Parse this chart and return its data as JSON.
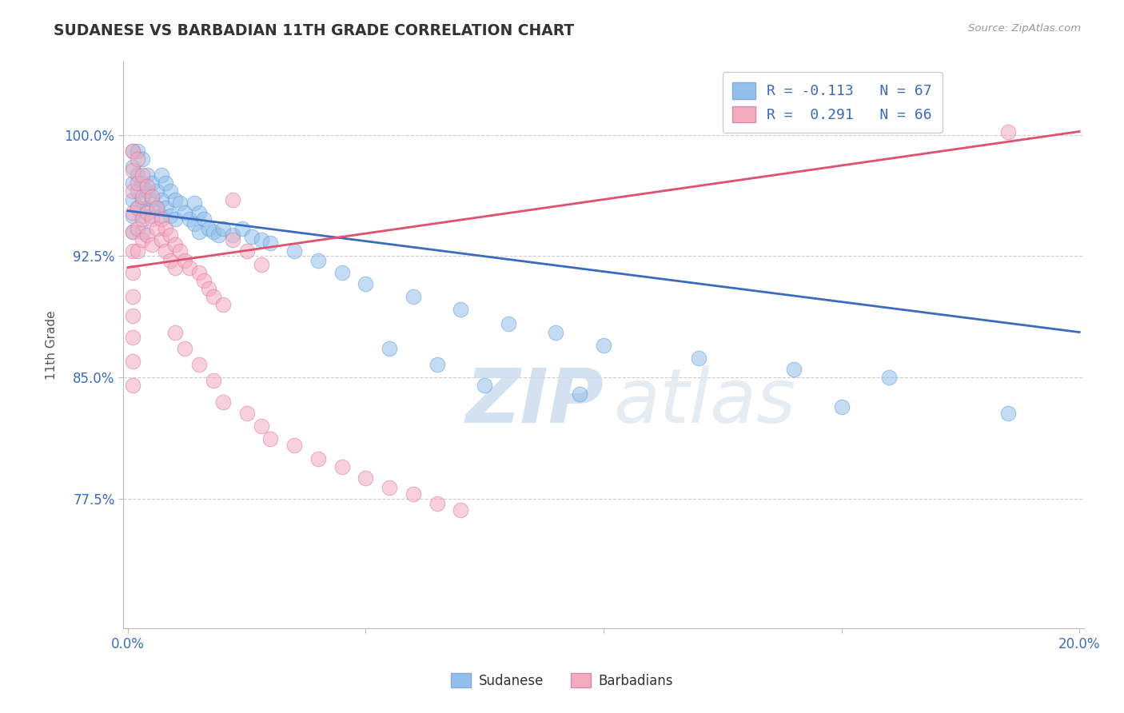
{
  "title": "SUDANESE VS BARBADIAN 11TH GRADE CORRELATION CHART",
  "source_text": "Source: ZipAtlas.com",
  "ylabel": "11th Grade",
  "xlim": [
    -0.001,
    0.201
  ],
  "ylim": [
    0.695,
    1.045
  ],
  "xticks": [
    0.0,
    0.05,
    0.1,
    0.15,
    0.2
  ],
  "xticklabels": [
    "0.0%",
    "",
    "",
    "",
    "20.0%"
  ],
  "yticks": [
    0.775,
    0.85,
    0.925,
    1.0
  ],
  "yticklabels": [
    "77.5%",
    "85.0%",
    "92.5%",
    "100.0%"
  ],
  "sudanese_color": "#92c0ea",
  "barbadian_color": "#f4abbe",
  "trend_blue_color": "#3a6bbf",
  "trend_pink_color": "#e05070",
  "watermark_zip": "ZIP",
  "watermark_atlas": "atlas",
  "legend_line1": "R = -0.113   N = 67",
  "legend_line2": "R =  0.291   N = 66",
  "blue_trend": [
    0.0,
    0.953,
    0.2,
    0.878
  ],
  "pink_trend": [
    0.0,
    0.918,
    0.2,
    1.002
  ],
  "sudanese_points": [
    [
      0.001,
      0.99
    ],
    [
      0.001,
      0.98
    ],
    [
      0.001,
      0.97
    ],
    [
      0.001,
      0.96
    ],
    [
      0.001,
      0.95
    ],
    [
      0.001,
      0.94
    ],
    [
      0.002,
      0.99
    ],
    [
      0.002,
      0.975
    ],
    [
      0.002,
      0.965
    ],
    [
      0.002,
      0.955
    ],
    [
      0.003,
      0.985
    ],
    [
      0.003,
      0.97
    ],
    [
      0.003,
      0.96
    ],
    [
      0.003,
      0.95
    ],
    [
      0.003,
      0.94
    ],
    [
      0.004,
      0.975
    ],
    [
      0.004,
      0.965
    ],
    [
      0.004,
      0.955
    ],
    [
      0.005,
      0.97
    ],
    [
      0.005,
      0.96
    ],
    [
      0.005,
      0.95
    ],
    [
      0.006,
      0.965
    ],
    [
      0.006,
      0.955
    ],
    [
      0.007,
      0.975
    ],
    [
      0.007,
      0.96
    ],
    [
      0.007,
      0.95
    ],
    [
      0.008,
      0.97
    ],
    [
      0.008,
      0.955
    ],
    [
      0.009,
      0.965
    ],
    [
      0.009,
      0.95
    ],
    [
      0.01,
      0.96
    ],
    [
      0.01,
      0.948
    ],
    [
      0.011,
      0.958
    ],
    [
      0.012,
      0.952
    ],
    [
      0.013,
      0.948
    ],
    [
      0.014,
      0.958
    ],
    [
      0.014,
      0.945
    ],
    [
      0.015,
      0.952
    ],
    [
      0.015,
      0.94
    ],
    [
      0.016,
      0.948
    ],
    [
      0.017,
      0.942
    ],
    [
      0.018,
      0.94
    ],
    [
      0.019,
      0.938
    ],
    [
      0.02,
      0.942
    ],
    [
      0.022,
      0.938
    ],
    [
      0.024,
      0.942
    ],
    [
      0.026,
      0.937
    ],
    [
      0.028,
      0.935
    ],
    [
      0.03,
      0.933
    ],
    [
      0.035,
      0.928
    ],
    [
      0.04,
      0.922
    ],
    [
      0.045,
      0.915
    ],
    [
      0.05,
      0.908
    ],
    [
      0.06,
      0.9
    ],
    [
      0.07,
      0.892
    ],
    [
      0.08,
      0.883
    ],
    [
      0.09,
      0.878
    ],
    [
      0.1,
      0.87
    ],
    [
      0.12,
      0.862
    ],
    [
      0.14,
      0.855
    ],
    [
      0.16,
      0.85
    ],
    [
      0.055,
      0.868
    ],
    [
      0.065,
      0.858
    ],
    [
      0.075,
      0.845
    ],
    [
      0.095,
      0.84
    ],
    [
      0.15,
      0.832
    ],
    [
      0.185,
      0.828
    ]
  ],
  "barbadian_points": [
    [
      0.001,
      0.99
    ],
    [
      0.001,
      0.978
    ],
    [
      0.001,
      0.965
    ],
    [
      0.001,
      0.952
    ],
    [
      0.001,
      0.94
    ],
    [
      0.001,
      0.928
    ],
    [
      0.001,
      0.915
    ],
    [
      0.001,
      0.9
    ],
    [
      0.001,
      0.888
    ],
    [
      0.001,
      0.875
    ],
    [
      0.001,
      0.86
    ],
    [
      0.001,
      0.845
    ],
    [
      0.002,
      0.985
    ],
    [
      0.002,
      0.97
    ],
    [
      0.002,
      0.955
    ],
    [
      0.002,
      0.942
    ],
    [
      0.002,
      0.928
    ],
    [
      0.003,
      0.975
    ],
    [
      0.003,
      0.962
    ],
    [
      0.003,
      0.948
    ],
    [
      0.003,
      0.935
    ],
    [
      0.004,
      0.968
    ],
    [
      0.004,
      0.952
    ],
    [
      0.004,
      0.938
    ],
    [
      0.005,
      0.962
    ],
    [
      0.005,
      0.948
    ],
    [
      0.005,
      0.932
    ],
    [
      0.006,
      0.955
    ],
    [
      0.006,
      0.942
    ],
    [
      0.007,
      0.948
    ],
    [
      0.007,
      0.935
    ],
    [
      0.008,
      0.942
    ],
    [
      0.008,
      0.928
    ],
    [
      0.009,
      0.938
    ],
    [
      0.009,
      0.922
    ],
    [
      0.01,
      0.932
    ],
    [
      0.01,
      0.918
    ],
    [
      0.011,
      0.928
    ],
    [
      0.012,
      0.922
    ],
    [
      0.013,
      0.918
    ],
    [
      0.015,
      0.915
    ],
    [
      0.016,
      0.91
    ],
    [
      0.017,
      0.905
    ],
    [
      0.018,
      0.9
    ],
    [
      0.02,
      0.895
    ],
    [
      0.022,
      0.935
    ],
    [
      0.025,
      0.928
    ],
    [
      0.028,
      0.92
    ],
    [
      0.01,
      0.878
    ],
    [
      0.012,
      0.868
    ],
    [
      0.015,
      0.858
    ],
    [
      0.018,
      0.848
    ],
    [
      0.02,
      0.835
    ],
    [
      0.025,
      0.828
    ],
    [
      0.028,
      0.82
    ],
    [
      0.03,
      0.812
    ],
    [
      0.035,
      0.808
    ],
    [
      0.04,
      0.8
    ],
    [
      0.045,
      0.795
    ],
    [
      0.05,
      0.788
    ],
    [
      0.055,
      0.782
    ],
    [
      0.06,
      0.778
    ],
    [
      0.065,
      0.772
    ],
    [
      0.07,
      0.768
    ],
    [
      0.022,
      0.96
    ],
    [
      0.185,
      1.002
    ]
  ]
}
